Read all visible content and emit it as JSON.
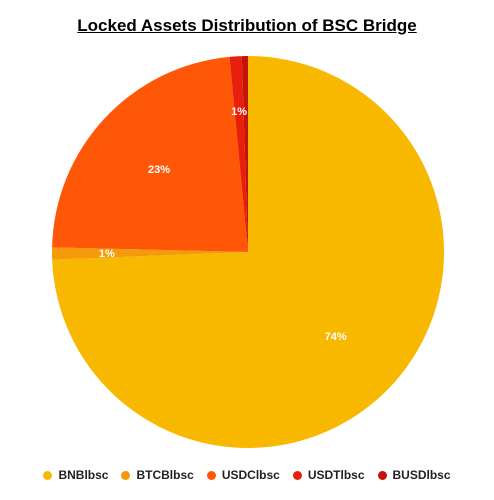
{
  "chart_data": {
    "type": "pie",
    "title": "Locked Assets Distribution of BSC Bridge",
    "slices": [
      {
        "label": "BNBlbsc",
        "value": 74,
        "data_label": "74%",
        "color": "#F8B800"
      },
      {
        "label": "BTCBlbsc",
        "value": 1,
        "data_label": "1%",
        "color": "#F49A0B"
      },
      {
        "label": "USDClbsc",
        "value": 23,
        "data_label": "23%",
        "color": "#FF5708"
      },
      {
        "label": "USDTlbsc",
        "value": 1,
        "data_label": "1%",
        "color": "#E8200B"
      },
      {
        "label": "BUSDlbsc",
        "value": 0.5,
        "data_label": "",
        "color": "#C4140A"
      }
    ],
    "legend_position": "bottom"
  }
}
